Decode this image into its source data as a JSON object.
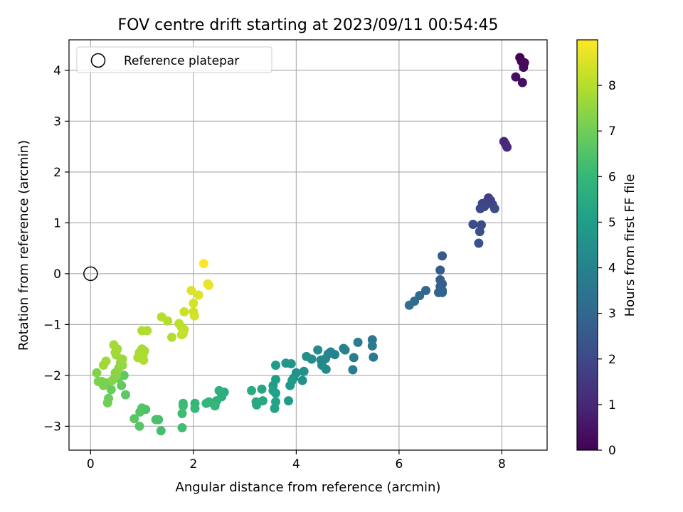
{
  "chart_data": {
    "type": "scatter",
    "title": "FOV centre drift starting at 2023/09/11 00:54:45",
    "xlabel": "Angular distance from reference (arcmin)",
    "ylabel": "Rotation from reference (arcmin)",
    "xlim": [
      -0.42,
      8.88
    ],
    "ylim": [
      -3.47,
      4.6
    ],
    "xticks": [
      0,
      2,
      4,
      6,
      8
    ],
    "yticks": [
      -3,
      -2,
      -1,
      0,
      1,
      2,
      3,
      4
    ],
    "grid": true,
    "legend": {
      "placement": "top-left",
      "entries": [
        "Reference platepar"
      ]
    },
    "reference_point": {
      "x": 0,
      "y": 0,
      "label": "Reference platepar"
    },
    "colorbar": {
      "label": "Hours from first FF file",
      "colormap": "viridis",
      "range": [
        0,
        9.0
      ],
      "ticks": [
        0,
        1,
        2,
        3,
        4,
        5,
        6,
        7,
        8
      ]
    },
    "viridis_stops": [
      "#440154",
      "#482878",
      "#3e4989",
      "#31688e",
      "#26828e",
      "#1f9e89",
      "#35b779",
      "#6ece58",
      "#b5de2b",
      "#fde725"
    ],
    "series": [
      {
        "points": [
          [
            8.35,
            4.25,
            0.0
          ],
          [
            8.38,
            4.18,
            0.08
          ],
          [
            8.44,
            4.15,
            0.15
          ],
          [
            8.42,
            4.06,
            0.22
          ],
          [
            8.27,
            3.87,
            0.3
          ],
          [
            8.4,
            3.76,
            0.38
          ],
          [
            8.04,
            2.6,
            1.0
          ],
          [
            8.07,
            2.55,
            1.05
          ],
          [
            8.1,
            2.49,
            1.1
          ],
          [
            7.74,
            1.49,
            1.7
          ],
          [
            7.78,
            1.44,
            1.75
          ],
          [
            7.7,
            1.41,
            1.8
          ],
          [
            7.82,
            1.36,
            1.85
          ],
          [
            7.62,
            1.38,
            1.9
          ],
          [
            7.66,
            1.32,
            1.95
          ],
          [
            7.58,
            1.28,
            2.0
          ],
          [
            7.86,
            1.28,
            2.05
          ],
          [
            7.6,
            0.96,
            2.1
          ],
          [
            7.44,
            0.97,
            2.15
          ],
          [
            7.57,
            0.83,
            2.2
          ],
          [
            7.55,
            0.6,
            2.25
          ],
          [
            6.84,
            0.35,
            2.5
          ],
          [
            6.8,
            0.07,
            2.6
          ],
          [
            6.8,
            -0.12,
            2.65
          ],
          [
            6.84,
            -0.2,
            2.7
          ],
          [
            6.8,
            -0.25,
            2.75
          ],
          [
            6.84,
            -0.33,
            2.8
          ],
          [
            6.77,
            -0.37,
            2.85
          ],
          [
            6.84,
            -0.37,
            2.9
          ],
          [
            6.52,
            -0.33,
            3.0
          ],
          [
            6.4,
            -0.43,
            3.1
          ],
          [
            6.3,
            -0.54,
            3.2
          ],
          [
            6.2,
            -0.62,
            3.3
          ],
          [
            5.48,
            -1.3,
            3.6
          ],
          [
            5.48,
            -1.42,
            3.65
          ],
          [
            5.5,
            -1.64,
            3.7
          ],
          [
            5.2,
            -1.35,
            3.75
          ],
          [
            5.12,
            -1.65,
            3.8
          ],
          [
            5.1,
            -1.89,
            3.85
          ],
          [
            4.92,
            -1.47,
            3.9
          ],
          [
            4.95,
            -1.5,
            3.95
          ],
          [
            4.75,
            -1.59,
            4.0
          ],
          [
            4.67,
            -1.54,
            4.05
          ],
          [
            4.62,
            -1.58,
            4.1
          ],
          [
            4.57,
            -1.67,
            4.15
          ],
          [
            4.48,
            -1.7,
            4.2
          ],
          [
            4.5,
            -1.8,
            4.25
          ],
          [
            4.58,
            -1.88,
            4.3
          ],
          [
            4.42,
            -1.5,
            4.35
          ],
          [
            4.3,
            -1.68,
            4.4
          ],
          [
            4.2,
            -1.63,
            4.45
          ],
          [
            4.15,
            -1.92,
            4.5
          ],
          [
            4.12,
            -2.1,
            4.55
          ],
          [
            4.0,
            -1.95,
            4.6
          ],
          [
            3.95,
            -2.05,
            4.65
          ],
          [
            3.9,
            -1.77,
            4.7
          ],
          [
            3.8,
            -1.76,
            4.75
          ],
          [
            3.88,
            -2.2,
            4.8
          ],
          [
            3.92,
            -2.1,
            4.85
          ],
          [
            3.85,
            -2.5,
            4.9
          ],
          [
            3.6,
            -1.8,
            4.95
          ],
          [
            3.6,
            -2.08,
            5.0
          ],
          [
            3.55,
            -2.2,
            5.05
          ],
          [
            3.55,
            -2.3,
            5.1
          ],
          [
            3.6,
            -2.35,
            5.15
          ],
          [
            3.6,
            -2.52,
            5.2
          ],
          [
            3.58,
            -2.65,
            5.25
          ],
          [
            3.33,
            -2.27,
            5.3
          ],
          [
            3.35,
            -2.5,
            5.35
          ],
          [
            3.22,
            -2.52,
            5.4
          ],
          [
            3.23,
            -2.58,
            5.45
          ],
          [
            3.13,
            -2.3,
            5.5
          ],
          [
            2.6,
            -2.33,
            5.6
          ],
          [
            2.55,
            -2.42,
            5.65
          ],
          [
            2.5,
            -2.3,
            5.7
          ],
          [
            2.45,
            -2.5,
            5.75
          ],
          [
            2.38,
            -2.55,
            5.8
          ],
          [
            2.3,
            -2.52,
            5.85
          ],
          [
            2.42,
            -2.6,
            5.9
          ],
          [
            2.25,
            -2.55,
            5.95
          ],
          [
            2.03,
            -2.55,
            6.0
          ],
          [
            2.03,
            -2.65,
            6.05
          ],
          [
            1.8,
            -2.55,
            6.1
          ],
          [
            1.8,
            -2.6,
            6.15
          ],
          [
            1.78,
            -2.75,
            6.2
          ],
          [
            1.78,
            -3.03,
            6.25
          ],
          [
            1.37,
            -3.09,
            6.3
          ],
          [
            1.32,
            -2.87,
            6.35
          ],
          [
            1.27,
            -2.87,
            6.4
          ],
          [
            1.07,
            -2.67,
            6.45
          ],
          [
            1.0,
            -2.64,
            6.5
          ],
          [
            0.96,
            -2.72,
            6.55
          ],
          [
            0.95,
            -3.0,
            6.6
          ],
          [
            0.85,
            -2.85,
            6.65
          ],
          [
            0.68,
            -2.38,
            6.7
          ],
          [
            0.65,
            -2.0,
            6.75
          ],
          [
            0.6,
            -2.2,
            6.8
          ],
          [
            0.55,
            -2.05,
            6.85
          ],
          [
            0.4,
            -2.28,
            6.9
          ],
          [
            0.35,
            -2.45,
            6.95
          ],
          [
            0.33,
            -2.54,
            7.0
          ],
          [
            0.3,
            -2.15,
            7.05
          ],
          [
            0.22,
            -2.12,
            7.1
          ],
          [
            0.25,
            -2.2,
            7.15
          ],
          [
            0.15,
            -2.12,
            7.2
          ],
          [
            0.12,
            -1.95,
            7.25
          ],
          [
            0.42,
            -2.1,
            7.3
          ],
          [
            0.5,
            -2.0,
            7.35
          ],
          [
            0.48,
            -1.95,
            7.4
          ],
          [
            0.55,
            -1.85,
            7.45
          ],
          [
            0.62,
            -1.8,
            7.5
          ],
          [
            0.58,
            -1.75,
            7.55
          ],
          [
            0.62,
            -1.68,
            7.6
          ],
          [
            0.5,
            -1.6,
            7.65
          ],
          [
            0.48,
            -1.55,
            7.7
          ],
          [
            0.45,
            -1.4,
            7.75
          ],
          [
            0.3,
            -1.72,
            7.7
          ],
          [
            0.25,
            -1.8,
            7.72
          ],
          [
            0.52,
            -1.48,
            7.76
          ],
          [
            1.0,
            -1.48,
            7.8
          ],
          [
            1.05,
            -1.52,
            7.82
          ],
          [
            0.95,
            -1.55,
            7.84
          ],
          [
            1.02,
            -1.6,
            7.86
          ],
          [
            0.92,
            -1.65,
            7.88
          ],
          [
            1.03,
            -1.7,
            7.9
          ],
          [
            1.0,
            -1.12,
            7.92
          ],
          [
            1.1,
            -1.12,
            7.94
          ],
          [
            1.58,
            -1.25,
            7.96
          ],
          [
            1.5,
            -0.93,
            7.98
          ],
          [
            1.38,
            -0.85,
            8.0
          ],
          [
            1.77,
            -1.05,
            8.05
          ],
          [
            1.72,
            -0.98,
            8.1
          ],
          [
            1.82,
            -1.1,
            8.15
          ],
          [
            1.8,
            -1.18,
            8.18
          ],
          [
            1.77,
            -1.2,
            8.2
          ],
          [
            1.82,
            -0.75,
            8.3
          ],
          [
            2.0,
            -0.75,
            8.35
          ],
          [
            2.02,
            -0.83,
            8.4
          ],
          [
            2.0,
            -0.58,
            8.45
          ],
          [
            2.1,
            -0.42,
            8.5
          ],
          [
            1.96,
            -0.33,
            8.55
          ],
          [
            2.28,
            -0.2,
            8.7
          ],
          [
            2.3,
            -0.23,
            8.75
          ],
          [
            2.2,
            0.2,
            9.0
          ]
        ]
      }
    ]
  }
}
